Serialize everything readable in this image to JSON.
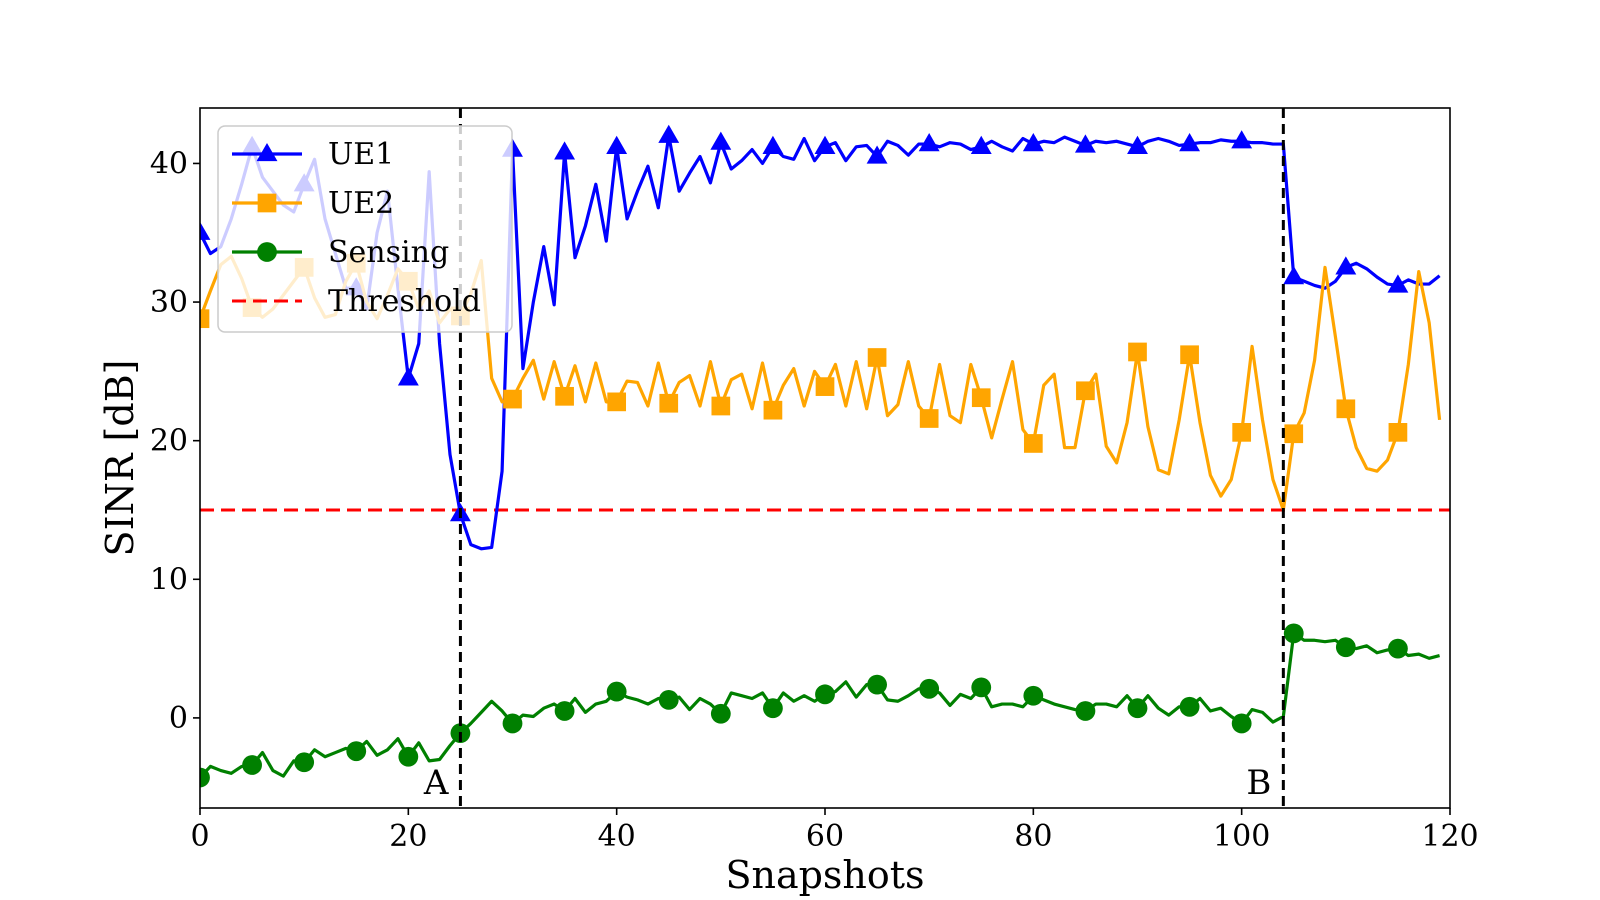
{
  "chart_data": {
    "type": "line",
    "title": "",
    "xlabel": "Snapshots",
    "ylabel": "SINR [dB]",
    "xlim": [
      0,
      120
    ],
    "ylim": [
      -6.5,
      44
    ],
    "xticks": [
      0,
      20,
      40,
      60,
      80,
      100,
      120
    ],
    "yticks": [
      0,
      10,
      20,
      30,
      40
    ],
    "legend_position": "top-left",
    "series": [
      {
        "name": "UE1",
        "color": "#0000ff",
        "marker": "triangle",
        "marker_every": 5,
        "values": [
          35,
          33.5,
          34,
          36,
          38.5,
          41.2,
          39,
          38,
          37,
          36.5,
          38.5,
          40.3,
          36,
          33.5,
          31,
          31,
          29.5,
          35,
          38,
          31,
          24.5,
          27,
          39.4,
          27,
          19,
          14.7,
          12.5,
          12.2,
          12.3,
          17.8,
          41,
          25.2,
          30,
          34,
          29.8,
          40.8,
          33.2,
          35.5,
          38.5,
          34.4,
          41.2,
          36,
          38,
          39.8,
          36.8,
          42,
          38,
          39.3,
          40.5,
          38.6,
          41.5,
          39.6,
          40.2,
          41,
          40,
          41.2,
          40.5,
          40.3,
          41.8,
          40.2,
          41.2,
          41.5,
          40.2,
          41.2,
          41.3,
          40.5,
          41.6,
          41.3,
          40.6,
          41.4,
          41.4,
          41.2,
          41.5,
          41.4,
          41,
          41.2,
          41.6,
          41.2,
          40.9,
          41.8,
          41.4,
          41.6,
          41.5,
          41.9,
          41.6,
          41.3,
          41.6,
          41.5,
          41.6,
          41.4,
          41.2,
          41.6,
          41.8,
          41.6,
          41.3,
          41.4,
          41.5,
          41.5,
          41.7,
          41.6,
          41.6,
          41.5,
          41.5,
          41.4,
          41.4,
          31.8,
          31.5,
          31.2,
          31,
          31.5,
          32.5,
          32.8,
          32.4,
          31.8,
          31.3,
          31.2,
          31.6,
          31.3,
          31.3,
          31.9
        ]
      },
      {
        "name": "UE2",
        "color": "#ffa500",
        "marker": "square",
        "marker_every": 5,
        "values": [
          28.8,
          30.8,
          32.7,
          33.3,
          31.7,
          29.6,
          28.9,
          29.5,
          30.5,
          31.5,
          32.5,
          30.3,
          28.9,
          29.1,
          31.5,
          32.8,
          30,
          28.8,
          30.5,
          32.4,
          31.5,
          29.5,
          30.8,
          28.5,
          29.5,
          29,
          30.6,
          33,
          24.5,
          22.8,
          23,
          24.5,
          25.8,
          23,
          25.7,
          23.2,
          25.4,
          22.8,
          25.6,
          22.8,
          22.8,
          24.3,
          24.2,
          22.5,
          25.6,
          22.7,
          24.2,
          24.7,
          22.5,
          25.7,
          22.5,
          24.4,
          24.8,
          22.3,
          25.6,
          22.2,
          24,
          25.2,
          22.5,
          25,
          23.9,
          25.5,
          22.5,
          25.7,
          22.3,
          26,
          21.8,
          22.6,
          25.7,
          22.5,
          21.6,
          25.5,
          21.8,
          21.3,
          25.5,
          23.1,
          20.2,
          23,
          25.7,
          20.8,
          19.8,
          24,
          24.8,
          19.5,
          19.5,
          23.6,
          24.8,
          19.6,
          18.4,
          21.3,
          26.4,
          21,
          17.9,
          17.6,
          21.5,
          26.2,
          21.3,
          17.5,
          16,
          17.2,
          20.6,
          26.8,
          21.5,
          17.2,
          15,
          20.5,
          22,
          25.8,
          32.5,
          27.5,
          22.3,
          19.5,
          18,
          17.8,
          18.6,
          20.6,
          25.5,
          32.2,
          28.5,
          21.5
        ]
      },
      {
        "name": "Sensing",
        "color": "#008000",
        "marker": "circle",
        "marker_every": 5,
        "values": [
          -4.3,
          -3.5,
          -3.8,
          -4,
          -3.5,
          -3.4,
          -2.5,
          -3.8,
          -4.2,
          -3.1,
          -3.2,
          -2.3,
          -2.8,
          -2.5,
          -2.2,
          -2.4,
          -1.7,
          -2.7,
          -2.3,
          -1.5,
          -2.8,
          -1.8,
          -3.1,
          -3,
          -2,
          -1.1,
          -0.4,
          0.4,
          1.2,
          0.5,
          -0.4,
          0.2,
          0.1,
          0.7,
          1,
          0.5,
          1.4,
          0.4,
          1,
          1.2,
          1.9,
          1.5,
          1.3,
          1,
          1.4,
          1.3,
          1.5,
          0.6,
          1.4,
          1,
          0.3,
          1.8,
          1.6,
          1.4,
          1.8,
          0.7,
          1.8,
          1.2,
          1.6,
          1.2,
          1.7,
          1.9,
          2.6,
          1.5,
          2.4,
          2.4,
          1.3,
          1.2,
          1.6,
          2.1,
          2.1,
          1.8,
          0.9,
          1.7,
          1.4,
          2.2,
          0.8,
          1,
          1,
          0.8,
          1.6,
          1.3,
          1,
          0.8,
          0.6,
          0.5,
          1,
          1,
          0.8,
          1.6,
          0.7,
          1.6,
          0.7,
          0.2,
          0.8,
          0.8,
          1.4,
          0.5,
          0.7,
          0.1,
          -0.4,
          0.6,
          0.4,
          -0.3,
          0.1,
          6.1,
          5.6,
          5.6,
          5.5,
          5.6,
          5.1,
          5,
          5.2,
          4.7,
          4.9,
          5,
          4.5,
          4.6,
          4.3,
          4.5
        ]
      },
      {
        "name": "Threshold",
        "color": "#ff0000",
        "style": "dashed",
        "values": [
          15,
          15
        ]
      }
    ],
    "vlines": [
      {
        "x": 25,
        "label": "A"
      },
      {
        "x": 104,
        "label": "B"
      }
    ]
  }
}
